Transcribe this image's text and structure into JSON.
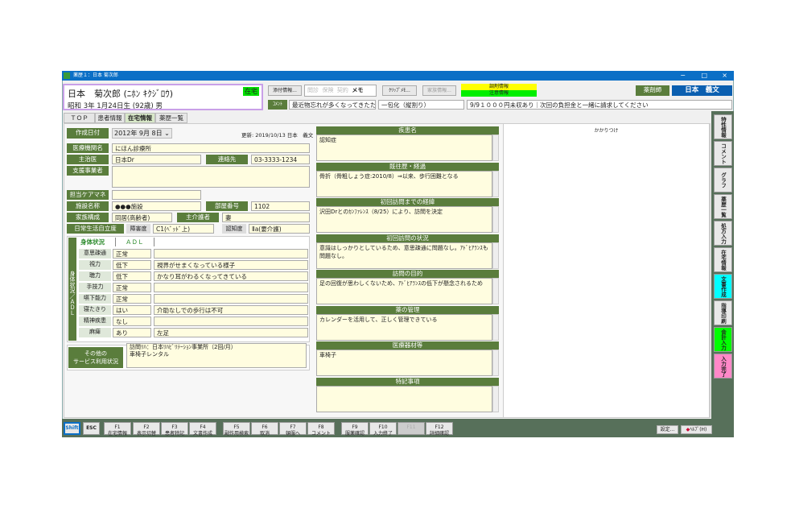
{
  "window": {
    "title": "薬歴１：日本 菊次郎",
    "controls": [
      "−",
      "□",
      "×"
    ]
  },
  "patient": {
    "name": "日本　菊次郎 (ﾆﾎﾝ ｷｸｼﾞﾛｳ)",
    "birth": "昭和  3年 1月24日生 (92歳) 男",
    "badge": "在宅"
  },
  "header": {
    "attach": "添付情報...",
    "flags": [
      "閲診",
      "保険",
      "契約"
    ],
    "memo": "メモ",
    "clip_memo": "ｸﾘｯﾌﾟﾒﾓ...",
    "family_info": "家族情報...",
    "dispense_info": "調剤情報",
    "caution_info": "注意情報",
    "pharmacist_label": "薬剤師",
    "pharmacist_name": "日本　義文",
    "comment_label": "ｺﾒﾝﾄ",
    "comments": [
      "最近物忘れが多くなってきたため",
      "一包化（縦割り）",
      "9/9１０００円未収あり｜次回の負担金と一緒に請求してください"
    ]
  },
  "tabs": [
    "ＴＯＰ",
    "患者情報",
    "在宅情報",
    "薬歴一覧"
  ],
  "form": {
    "created_label": "作成日付",
    "created_value": "2012年  9月  8日",
    "updated": "更新: 2019/10/13 日本　義文",
    "clinic_label": "医療機関名",
    "clinic": "にほん診療所",
    "doctor_label": "主治医",
    "doctor": "日本Dr",
    "contact_label": "連絡先",
    "contact": "03-3333-1234",
    "support_label": "支援事業者",
    "support": "",
    "caremanager_label": "担当ケアマネ",
    "caremanager": "",
    "facility_label": "施設名称",
    "facility": "●●●施設",
    "room_label": "部屋番号",
    "room": "1102",
    "family_label": "家族構成",
    "family": "同居(高齢者)",
    "caregiver_label": "主介護者",
    "caregiver": "妻",
    "adl_label": "日常生活自立度",
    "disability_label": "障害度",
    "disability": "C1(ﾍﾞｯﾄﾞ上)",
    "dementia_label": "認知度",
    "dementia": "Ⅱa(要介護)"
  },
  "body_status": {
    "side_label": "身体状況／ＡＤＬ",
    "tabs": [
      "身体状況",
      "ＡＤＬ"
    ],
    "rows": [
      {
        "label": "意思疎通",
        "value": "正常",
        "note": ""
      },
      {
        "label": "視力",
        "value": "低下",
        "note": "視界がせまくなっている様子"
      },
      {
        "label": "聴力",
        "value": "低下",
        "note": "かなり耳がわるくなってきている"
      },
      {
        "label": "手技力",
        "value": "正常",
        "note": ""
      },
      {
        "label": "嚥下能力",
        "value": "正常",
        "note": ""
      },
      {
        "label": "寝たきり",
        "value": "はい",
        "note": "介助なしでの歩行は不可"
      },
      {
        "label": "精神疾患",
        "value": "なし",
        "note": ""
      },
      {
        "label": "麻痺",
        "value": "あり",
        "note": "左足"
      }
    ]
  },
  "other_services": {
    "label": "その他の\nサービス利用状況",
    "lines": [
      "訪問ﾘﾊ：日本ﾘﾊﾋﾞﾘﾃｰｼｮﾝ事業所（2回/月）",
      "車椅子レンタル"
    ]
  },
  "sections": [
    {
      "title": "疾患名",
      "body": "認知症"
    },
    {
      "title": "既往歴・経過",
      "body": "骨折（骨粗しょう症:2010/8）⇒以来、歩行困難となる"
    },
    {
      "title": "初回訪問までの経緯",
      "body": "沢田Drとのｶﾝﾌｧﾚﾝｽ（8/25）により、訪問を決定"
    },
    {
      "title": "初回訪問の状況",
      "body": "意識はしっかりとしているため、意思疎通に問題なし。ｱﾄﾞﾋｱﾗﾝｽも問題なし。"
    },
    {
      "title": "訪問の目的",
      "body": "足の回復が思わしくないため、ｱﾄﾞﾋｱﾗﾝｽの低下が懸念されるため"
    },
    {
      "title": "薬の管理",
      "body": "カレンダーを活用して、正しく管理できている"
    },
    {
      "title": "医療器材等",
      "body": "車椅子"
    },
    {
      "title": "特記事項",
      "body": ""
    }
  ],
  "kakaritsuke": "かかりつけ",
  "side_buttons": [
    {
      "label": "特性情報",
      "color": "#e8e8e8"
    },
    {
      "label": "コメント",
      "color": "#e8e8e8"
    },
    {
      "label": "グラフ",
      "color": "#e8e8e8"
    },
    {
      "label": "薬歴一覧",
      "color": "#e8e8e8"
    },
    {
      "label": "処方入力",
      "color": "#e8e8e8"
    },
    {
      "label": "在宅情報",
      "color": "#e8e8e8"
    },
    {
      "label": "文書作成",
      "color": "#00ffff"
    },
    {
      "label": "指導印刷",
      "color": "#e8e8e8"
    },
    {
      "label": "会計入力",
      "color": "#00ff00"
    },
    {
      "label": "入力完了",
      "color": "#ff88c8"
    }
  ],
  "footer": {
    "shift": "Shift",
    "esc": "ESC",
    "fkeys": [
      {
        "key": "F1",
        "label": "在宅情報"
      },
      {
        "key": "F2",
        "label": "表示切替"
      },
      {
        "key": "F3",
        "label": "患者特記"
      },
      {
        "key": "F4",
        "label": "文書作成"
      },
      {
        "key": "F5",
        "label": "副作用検索"
      },
      {
        "key": "F6",
        "label": "取消"
      },
      {
        "key": "F7",
        "label": "頓服へ"
      },
      {
        "key": "F8",
        "label": "コメント"
      },
      {
        "key": "F9",
        "label": "服薬確認"
      },
      {
        "key": "F10",
        "label": "入力終了"
      },
      {
        "key": "F11",
        "label": ""
      },
      {
        "key": "F12",
        "label": "詳細確認"
      }
    ],
    "settings": "設定...",
    "help": "ﾍﾙﾌﾟ(H)"
  },
  "colors": {
    "accent_green": "#5a7d3c",
    "title_blue": "#0b6fc6",
    "field_bg": "#fffde0",
    "pharmacist_blue": "#0b5fb0"
  }
}
